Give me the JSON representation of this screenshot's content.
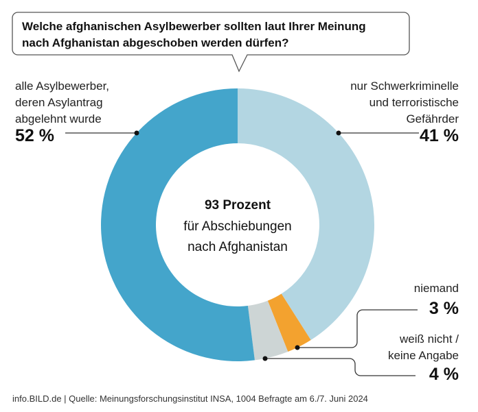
{
  "chart_data": {
    "type": "pie",
    "donut": true,
    "title": "Welche afghanischen Asylbewerber sollten laut Ihrer Meinung nach Afghanistan abgeschoben werden dürfen?",
    "title_lines": [
      "Welche afghanischen Asylbewerber sollten laut Ihrer Meinung",
      "nach Afghanistan abgeschoben werden dürfen?"
    ],
    "center_text": [
      "93 Prozent",
      "für Abschiebungen",
      "nach Afghanistan"
    ],
    "slices": [
      {
        "label_lines": [
          "nur Schwerkriminelle",
          "und terroristische",
          "Gefährder"
        ],
        "value": 41,
        "value_label": "41 %",
        "color": "#b3d6e2"
      },
      {
        "label_lines": [
          "niemand"
        ],
        "value": 3,
        "value_label": "3 %",
        "color": "#f3a22f"
      },
      {
        "label_lines": [
          "weiß nicht /",
          "keine Angabe"
        ],
        "value": 4,
        "value_label": "4 %",
        "color": "#cdd5d5"
      },
      {
        "label_lines": [
          "alle Asylbewerber,",
          "deren Asylantrag",
          "abgelehnt wurde"
        ],
        "value": 52,
        "value_label": "52 %",
        "color": "#44a5cb"
      }
    ],
    "source": "info.BILD.de | Quelle: Meinungsforschungsinstitut INSA, 1004 Befragte am 6./7. Juni 2024"
  }
}
